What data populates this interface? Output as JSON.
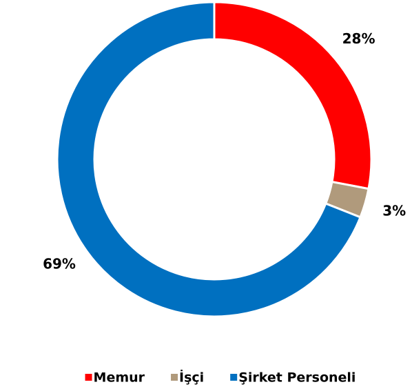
{
  "chart_data": {
    "type": "donut",
    "categories": [
      "Memur",
      "İşçi",
      "Şirket Personeli"
    ],
    "values": [
      28,
      3,
      69
    ],
    "value_labels": [
      "28%",
      "3%",
      "69%"
    ],
    "colors": [
      "#ff0000",
      "#b09a7c",
      "#0070c0"
    ],
    "legend": "bottom"
  }
}
